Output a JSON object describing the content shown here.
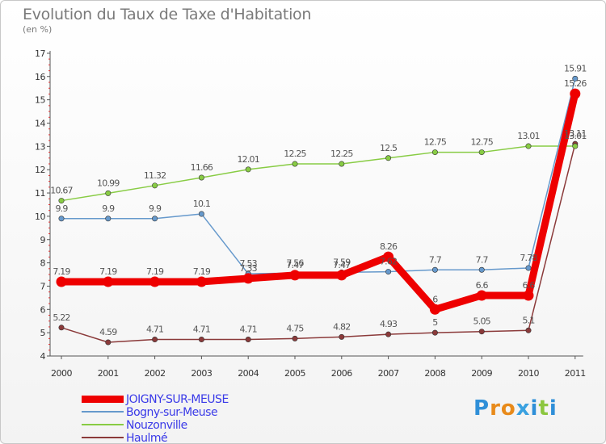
{
  "header": {
    "title": "Evolution du Taux de Taxe d'Habitation",
    "subtitle": "(en %)"
  },
  "brand": {
    "letters": [
      {
        "ch": "P",
        "color": "#2f8fd8"
      },
      {
        "ch": "r",
        "color": "#e88a1a"
      },
      {
        "ch": "o",
        "color": "#e88a1a"
      },
      {
        "ch": "x",
        "color": "#3aa1e0"
      },
      {
        "ch": "i",
        "color": "#2f8fd8"
      },
      {
        "ch": "t",
        "color": "#8cc63f"
      },
      {
        "ch": "i",
        "color": "#2f8fd8"
      }
    ]
  },
  "chart_data": {
    "type": "line",
    "title": "Evolution du Taux de Taxe d'Habitation",
    "subtitle": "(en %)",
    "x": [
      "2000",
      "2001",
      "2002",
      "2003",
      "2004",
      "2005",
      "2006",
      "2007",
      "2008",
      "2009",
      "2010",
      "2011"
    ],
    "ylim": [
      4,
      17
    ],
    "yticks": [
      "4",
      "5",
      "6",
      "7",
      "8",
      "9",
      "10",
      "11",
      "12",
      "13",
      "14",
      "15",
      "16",
      "17"
    ],
    "grid": false,
    "legend_position": "bottom-left",
    "series": [
      {
        "name": "Haulmé",
        "color": "#8b3a3a",
        "emphasis": false,
        "values": [
          5.22,
          4.59,
          4.71,
          4.71,
          4.71,
          4.75,
          4.82,
          4.93,
          5,
          5.05,
          5.1,
          13.11
        ],
        "labels": [
          "5.22",
          "4.59",
          "4.71",
          "4.71",
          "4.71",
          "4.75",
          "4.82",
          "4.93",
          "5",
          "5.05",
          "5.1",
          "13.11"
        ]
      },
      {
        "name": "Nouzonville",
        "color": "#88cc44",
        "emphasis": false,
        "values": [
          10.67,
          10.99,
          11.32,
          11.66,
          12.01,
          12.25,
          12.25,
          12.5,
          12.75,
          12.75,
          13.01,
          13.01
        ],
        "labels": [
          "10.67",
          "10.99",
          "11.32",
          "11.66",
          "12.01",
          "12.25",
          "12.25",
          "12.5",
          "12.75",
          "12.75",
          "13.01",
          "13.01"
        ]
      },
      {
        "name": "Bogny-sur-Meuse",
        "color": "#6699cc",
        "emphasis": false,
        "values": [
          9.9,
          9.9,
          9.9,
          10.1,
          7.53,
          7.56,
          7.59,
          7.62,
          7.7,
          7.7,
          7.78,
          15.91
        ],
        "labels": [
          "9.9",
          "9.9",
          "9.9",
          "10.1",
          "7.53",
          "7.56",
          "7.59",
          "7.62",
          "7.7",
          "7.7",
          "7.78",
          "15.91"
        ]
      },
      {
        "name": "JOIGNY-SUR-MEUSE",
        "color": "#ee0000",
        "emphasis": true,
        "values": [
          7.19,
          7.19,
          7.19,
          7.19,
          7.33,
          7.47,
          7.47,
          8.26,
          6,
          6.6,
          6.6,
          15.26
        ],
        "labels": [
          "7.19",
          "7.19",
          "7.19",
          "7.19",
          "7.33",
          "7.47",
          "7.47",
          "8.26",
          "6",
          "6.6",
          "6.6",
          "15.26"
        ]
      }
    ],
    "legend_order": [
      "JOIGNY-SUR-MEUSE",
      "Bogny-sur-Meuse",
      "Nouzonville",
      "Haulmé"
    ],
    "legend_text_color": "#3a3ae8"
  }
}
